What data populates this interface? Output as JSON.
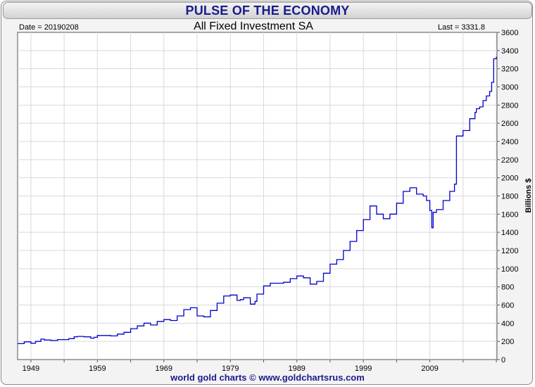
{
  "header": {
    "banner_title": "PULSE OF THE ECONOMY",
    "date_label": "Date = 20190208",
    "last_label": "Last = 3331.8"
  },
  "footer": {
    "credit": "world gold charts © www.goldchartsrus.com"
  },
  "colors": {
    "line": "#0000cc",
    "banner_text": "#1a1a8c",
    "grid": "#d9d9d9"
  },
  "chart_data": {
    "type": "line",
    "title": "All Fixed Investment SA",
    "xlabel": "",
    "ylabel": "Billions $",
    "ylim": [
      0,
      3600
    ],
    "xlim": [
      1947,
      2019.1
    ],
    "yticks": [
      0,
      200,
      400,
      600,
      800,
      1000,
      1200,
      1400,
      1600,
      1800,
      2000,
      2200,
      2400,
      2600,
      2800,
      3000,
      3200,
      3400,
      3600
    ],
    "xtick_labels": [
      "1949",
      "1959",
      "1969",
      "1979",
      "1989",
      "1999",
      "2009"
    ],
    "grid": true,
    "series": [
      {
        "x": [
          1947,
          1948,
          1949,
          1949.7,
          1950.5,
          1951,
          1952,
          1953,
          1954,
          1954.7,
          1955.5,
          1956,
          1957,
          1958,
          1958.5,
          1959,
          1960,
          1961,
          1962,
          1963,
          1964,
          1965,
          1966,
          1967,
          1968,
          1969,
          1970,
          1971,
          1972,
          1973,
          1974,
          1975,
          1976,
          1977,
          1978,
          1979,
          1980,
          1980.5,
          1981,
          1982,
          1982.7,
          1983,
          1984,
          1985,
          1986,
          1987,
          1988,
          1989,
          1990,
          1991,
          1992,
          1993,
          1994,
          1995,
          1996,
          1997,
          1998,
          1999,
          2000,
          2001,
          2002,
          2003,
          2004,
          2005,
          2006,
          2007,
          2008,
          2008.5,
          2009,
          2009.3,
          2009.5,
          2010,
          2011,
          2012,
          2012.7,
          2013,
          2014,
          2015,
          2015.8,
          2016,
          2016.5,
          2017,
          2017.5,
          2018,
          2018.3,
          2018.6,
          2019
        ],
        "y": [
          175,
          195,
          180,
          200,
          225,
          215,
          210,
          220,
          220,
          230,
          250,
          255,
          250,
          235,
          245,
          265,
          265,
          260,
          280,
          300,
          340,
          370,
          400,
          380,
          420,
          440,
          430,
          480,
          550,
          570,
          480,
          470,
          540,
          620,
          700,
          710,
          650,
          660,
          680,
          610,
          640,
          720,
          810,
          840,
          840,
          850,
          890,
          920,
          900,
          830,
          860,
          950,
          1050,
          1100,
          1200,
          1300,
          1420,
          1540,
          1690,
          1600,
          1550,
          1600,
          1720,
          1850,
          1890,
          1820,
          1800,
          1750,
          1640,
          1450,
          1620,
          1650,
          1750,
          1850,
          1930,
          2460,
          2520,
          2650,
          2720,
          2760,
          2780,
          2850,
          2900,
          2950,
          3050,
          3310,
          3332
        ]
      }
    ]
  }
}
